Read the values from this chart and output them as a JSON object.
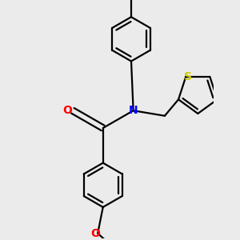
{
  "background_color": "#ebebeb",
  "bond_color": "#000000",
  "N_color": "#0000ff",
  "O_color": "#ff0000",
  "S_color": "#cccc00",
  "lw": 1.6,
  "figsize": [
    3.0,
    3.0
  ],
  "dpi": 100,
  "xlim": [
    -1.8,
    2.6
  ],
  "ylim": [
    -2.8,
    2.8
  ]
}
